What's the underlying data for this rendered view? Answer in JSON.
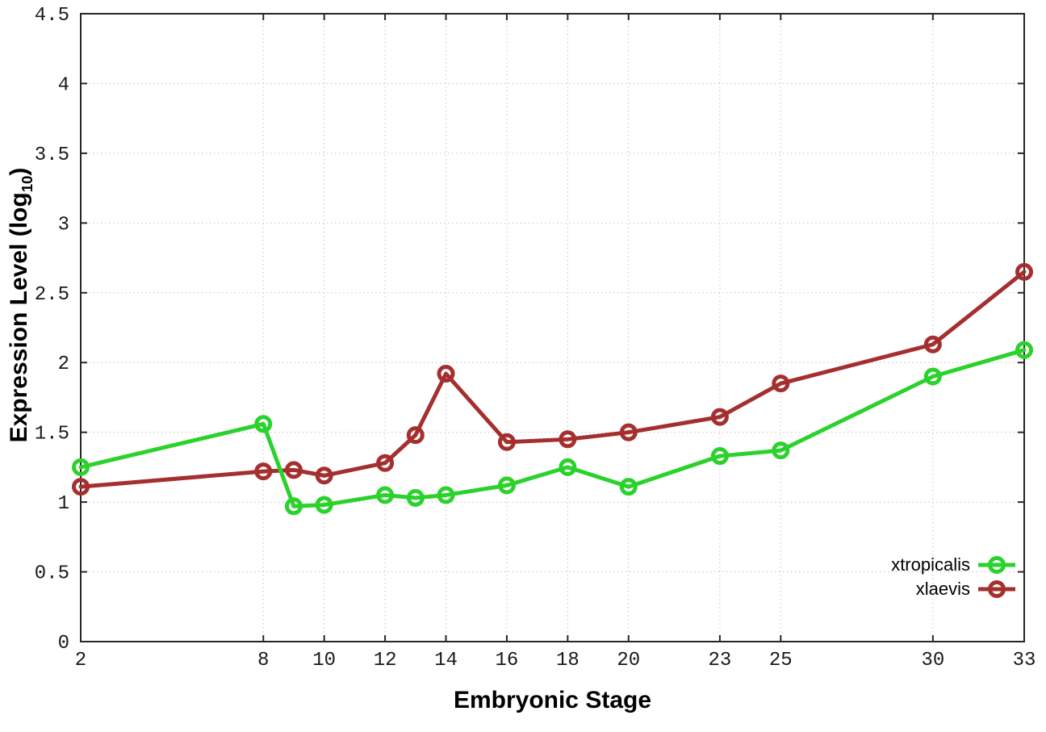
{
  "figure": {
    "background": "#ffffff",
    "x_axis_label": "Embryonic Stage",
    "y_axis_label_main": "Expression Level (log",
    "y_axis_label_sub": "10",
    "y_axis_label_close": ")"
  },
  "chart_data": {
    "type": "line",
    "x": [
      2,
      8,
      9,
      10,
      12,
      13,
      14,
      16,
      18,
      20,
      23,
      25,
      30,
      33
    ],
    "series": [
      {
        "name": "xtropicalis",
        "color": "#2bd22b",
        "values": [
          1.25,
          1.56,
          0.97,
          0.98,
          1.05,
          1.03,
          1.05,
          1.12,
          1.25,
          1.11,
          1.33,
          1.37,
          1.9,
          2.09
        ]
      },
      {
        "name": "xlaevis",
        "color": "#a52f2f",
        "values": [
          1.11,
          1.22,
          1.23,
          1.19,
          1.28,
          1.48,
          1.92,
          1.43,
          1.45,
          1.5,
          1.61,
          1.85,
          2.13,
          2.65
        ]
      }
    ],
    "title": "",
    "xlabel": "Embryonic Stage",
    "ylabel": "Expression Level (log10)",
    "xlim": [
      2,
      33
    ],
    "ylim": [
      0,
      4.5
    ],
    "xticks": [
      2,
      8,
      10,
      12,
      14,
      16,
      18,
      20,
      23,
      25,
      30,
      33
    ],
    "yticks": [
      0,
      0.5,
      1,
      1.5,
      2,
      2.5,
      3,
      3.5,
      4,
      4.5
    ],
    "grid": true,
    "grid_style": "dotted",
    "marker": "open-circle",
    "legend_position": "bottom-right"
  },
  "colors": {
    "grid": "#c3c3c3",
    "border": "#262626",
    "tick_label": "#1a1a1a"
  }
}
